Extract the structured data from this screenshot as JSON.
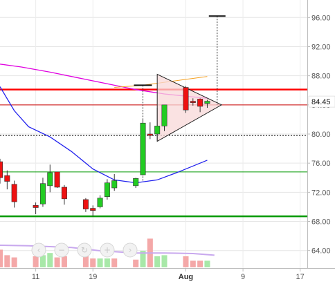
{
  "chart_data": {
    "type": "candlestick",
    "y_axis": {
      "range": [
        61.6,
        98.4
      ],
      "ticks": [
        64,
        68,
        72,
        76,
        80,
        84,
        88,
        92,
        96
      ],
      "tick_labels": [
        "64.00",
        "68.00",
        "72.00",
        "76.00",
        "80.00",
        "84.00",
        "88.00",
        "92.00",
        "96.00"
      ],
      "position": "right"
    },
    "x_axis": {
      "range": [
        "2016-07-06",
        "2016-08-18"
      ],
      "ticks": [
        "2016-07-11",
        "2016-07-19",
        "2016-08-01",
        "2016-08-09",
        "2016-08-17"
      ],
      "tick_labels": [
        "11",
        "19",
        "Aug",
        "9",
        "17"
      ]
    },
    "last_price_label": "84.45",
    "colors": {
      "up": "#22cc22",
      "down": "#ee1111",
      "support": "#009900",
      "resistance": "#ff0000",
      "triangle_fill": "#f8d8d8",
      "magenta_ma": "#e000e0",
      "blue_ma": "#2222ee",
      "orange_ma": "#f5a020",
      "volume_up": "#a8e8a8",
      "volume_down": "#f4a8a8",
      "volume_avg": "#c8a8ee"
    },
    "candles": [
      {
        "date": "2016-07-06",
        "open": 76.2,
        "high": 76.6,
        "low": 73.2,
        "close": 74.0
      },
      {
        "date": "2016-07-07",
        "open": 74.3,
        "high": 75.0,
        "low": 72.4,
        "close": 73.5
      },
      {
        "date": "2016-07-08",
        "open": 73.1,
        "high": 73.6,
        "low": 69.9,
        "close": 70.7
      },
      {
        "date": "2016-07-11",
        "open": 70.2,
        "high": 70.6,
        "low": 69.0,
        "close": 69.9
      },
      {
        "date": "2016-07-12",
        "open": 70.4,
        "high": 74.0,
        "low": 70.0,
        "close": 73.2
      },
      {
        "date": "2016-07-13",
        "open": 72.9,
        "high": 75.8,
        "low": 72.0,
        "close": 74.7
      },
      {
        "date": "2016-07-14",
        "open": 74.8,
        "high": 74.8,
        "low": 72.6,
        "close": 72.7
      },
      {
        "date": "2016-07-15",
        "open": 72.7,
        "high": 73.0,
        "low": 70.3,
        "close": 71.1
      },
      {
        "date": "2016-07-18",
        "open": 71.0,
        "high": 71.2,
        "low": 69.3,
        "close": 69.7
      },
      {
        "date": "2016-07-19",
        "open": 69.8,
        "high": 70.2,
        "low": 68.7,
        "close": 69.5
      },
      {
        "date": "2016-07-20",
        "open": 70.0,
        "high": 71.6,
        "low": 69.8,
        "close": 71.2
      },
      {
        "date": "2016-07-21",
        "open": 71.4,
        "high": 73.8,
        "low": 71.0,
        "close": 73.3
      },
      {
        "date": "2016-07-22",
        "open": 72.6,
        "high": 74.5,
        "low": 72.2,
        "close": 73.6
      },
      {
        "date": "2016-07-25",
        "open": 72.9,
        "high": 74.0,
        "low": 72.6,
        "close": 73.9
      },
      {
        "date": "2016-07-26",
        "open": 74.4,
        "high": 82.0,
        "low": 74.3,
        "close": 81.5
      },
      {
        "date": "2016-07-27",
        "open": 80.0,
        "high": 81.6,
        "low": 79.3,
        "close": 79.8
      },
      {
        "date": "2016-07-28",
        "open": 80.0,
        "high": 83.6,
        "low": 79.1,
        "close": 81.1
      },
      {
        "date": "2016-07-29",
        "open": 81.1,
        "high": 84.0,
        "low": 80.4,
        "close": 84.0
      },
      {
        "date": "2016-08-01",
        "open": 86.4,
        "high": 86.6,
        "low": 82.9,
        "close": 83.3
      },
      {
        "date": "2016-08-02",
        "open": 84.5,
        "high": 84.9,
        "low": 83.9,
        "close": 84.3
      },
      {
        "date": "2016-08-03",
        "open": 84.8,
        "high": 84.9,
        "low": 83.0,
        "close": 83.8
      },
      {
        "date": "2016-08-04",
        "open": 84.2,
        "high": 84.7,
        "low": 83.6,
        "close": 84.5
      }
    ],
    "volume": [
      {
        "date": "2016-07-06",
        "dir": "down",
        "value": 1.6
      },
      {
        "date": "2016-07-07",
        "dir": "down",
        "value": 1.1
      },
      {
        "date": "2016-07-08",
        "dir": "down",
        "value": 0.9
      },
      {
        "date": "2016-07-11",
        "dir": "down",
        "value": 1.0
      },
      {
        "date": "2016-07-12",
        "dir": "up",
        "value": 1.1
      },
      {
        "date": "2016-07-13",
        "dir": "up",
        "value": 1.3
      },
      {
        "date": "2016-07-14",
        "dir": "down",
        "value": 0.9
      },
      {
        "date": "2016-07-15",
        "dir": "down",
        "value": 1.0
      },
      {
        "date": "2016-07-18",
        "dir": "down",
        "value": 1.1
      },
      {
        "date": "2016-07-19",
        "dir": "down",
        "value": 0.8
      },
      {
        "date": "2016-07-20",
        "dir": "up",
        "value": 0.8
      },
      {
        "date": "2016-07-21",
        "dir": "up",
        "value": 0.8
      },
      {
        "date": "2016-07-22",
        "dir": "down",
        "value": 0.8
      },
      {
        "date": "2016-07-25",
        "dir": "down",
        "value": 0.7
      },
      {
        "date": "2016-07-26",
        "dir": "up",
        "value": 1.5
      },
      {
        "date": "2016-07-27",
        "dir": "down",
        "value": 2.6
      },
      {
        "date": "2016-07-28",
        "dir": "up",
        "value": 1.0
      },
      {
        "date": "2016-07-29",
        "dir": "up",
        "value": 1.1
      },
      {
        "date": "2016-08-01",
        "dir": "down",
        "value": 1.0
      },
      {
        "date": "2016-08-02",
        "dir": "down",
        "value": 0.6
      },
      {
        "date": "2016-08-03",
        "dir": "down",
        "value": 0.6
      },
      {
        "date": "2016-08-04",
        "dir": "up",
        "value": 0.6
      }
    ],
    "volume_avg": [
      [
        "2016-07-06",
        2.0
      ],
      [
        "2016-07-10",
        1.95
      ],
      [
        "2016-07-16",
        1.8
      ],
      [
        "2016-07-20",
        1.5
      ],
      [
        "2016-07-25",
        1.3
      ],
      [
        "2016-07-29",
        1.3
      ],
      [
        "2016-08-02",
        1.25
      ],
      [
        "2016-08-05",
        1.1
      ]
    ],
    "moving_averages": [
      {
        "color": "magenta",
        "points": [
          [
            "2016-07-06",
            89.6
          ],
          [
            "2016-07-09",
            89.2
          ],
          [
            "2016-07-13",
            88.5
          ],
          [
            "2016-07-17",
            87.7
          ],
          [
            "2016-07-21",
            86.9
          ],
          [
            "2016-07-25",
            86.1
          ],
          [
            "2016-07-29",
            85.5
          ],
          [
            "2016-08-02",
            85.1
          ],
          [
            "2016-08-04",
            84.9
          ]
        ]
      },
      {
        "color": "blue",
        "points": [
          [
            "2016-07-06",
            86.5
          ],
          [
            "2016-07-08",
            83.2
          ],
          [
            "2016-07-10",
            81.0
          ],
          [
            "2016-07-13",
            79.6
          ],
          [
            "2016-07-16",
            77.6
          ],
          [
            "2016-07-19",
            75.2
          ],
          [
            "2016-07-22",
            73.7
          ],
          [
            "2016-07-25",
            73.3
          ],
          [
            "2016-07-28",
            73.7
          ],
          [
            "2016-07-31",
            74.8
          ],
          [
            "2016-08-04",
            76.4
          ]
        ]
      },
      {
        "color": "orange",
        "points": [
          [
            "2016-07-22",
            86.4
          ],
          [
            "2016-07-26",
            86.7
          ],
          [
            "2016-07-29",
            87.1
          ],
          [
            "2016-08-01",
            87.5
          ],
          [
            "2016-08-04",
            87.9
          ]
        ]
      }
    ],
    "horizontal_lines": [
      {
        "kind": "resistance",
        "price": 86.1,
        "color": "#ff0000",
        "style": "solid-thick"
      },
      {
        "kind": "triangle-breakout",
        "price": 84.0,
        "color": "#cc0000",
        "style": "solid-thin"
      },
      {
        "kind": "breakout-level",
        "price": 79.8,
        "color": "#000000",
        "style": "dotted"
      },
      {
        "kind": "support",
        "price": 74.8,
        "color": "#009900",
        "style": "solid-thin"
      },
      {
        "kind": "support",
        "price": 68.7,
        "color": "#009900",
        "style": "solid-thick"
      }
    ],
    "annotations": {
      "triangle": [
        [
          "2016-07-28",
          88.2
        ],
        [
          "2016-07-28",
          79.0
        ],
        [
          "2016-08-06",
          84.0
        ]
      ],
      "flagpole_measure": {
        "date": "2016-07-26",
        "top": 86.7,
        "bottom": 73.5
      },
      "projection_measure": {
        "date": "2016-08-05",
        "top": 96.2,
        "bottom": 84.0
      }
    },
    "zoom_controls": [
      "‹",
      "−",
      "↻",
      "+",
      "›"
    ]
  }
}
